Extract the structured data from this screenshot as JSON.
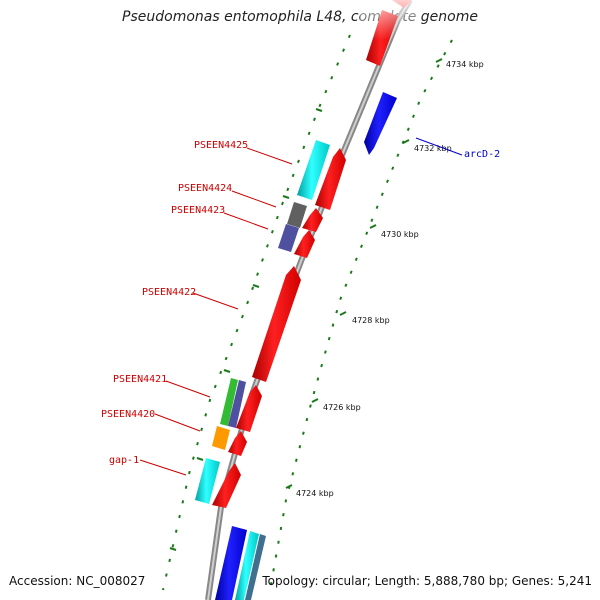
{
  "title": "Pseudomonas entomophila L48, complete genome",
  "accession_text": "Accession: NC_008027",
  "topology_text": "Topology: circular; Length: 5,888,780 bp; Genes: 5,241",
  "ticks": [
    "4734 kbp",
    "4732 kbp",
    "4730 kbp",
    "4728 kbp",
    "4726 kbp",
    "4724 kbp"
  ],
  "genes": {
    "arcD": "arcD-2",
    "g4425": "PSEEN4425",
    "g4424": "PSEEN4424",
    "g4423": "PSEEN4423",
    "g4422": "PSEEN4422",
    "g4421": "PSEEN4421",
    "g4420": "PSEEN4420",
    "gap": "gap-1"
  },
  "colors": {
    "forward": "#ff0000",
    "reverse": "#0000ff",
    "cyan": "#00dddd",
    "gray": "#606060",
    "purple": "#5050a0",
    "green": "#33bb33",
    "orange": "#ff9900",
    "label_red": "#cc0000",
    "label_blue": "#0000cc",
    "tick_green": "#1a7a1a"
  }
}
